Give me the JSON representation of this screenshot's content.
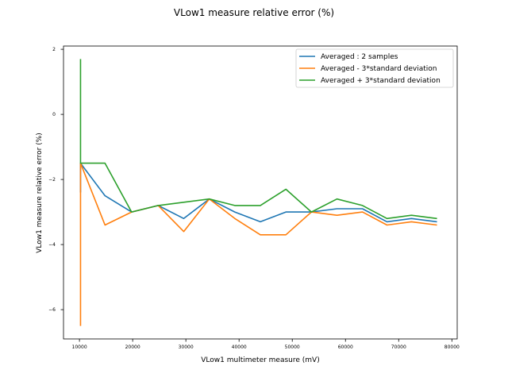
{
  "chart_data": {
    "type": "line",
    "title": "VLow1 measure relative error (%)",
    "xlabel": "VLow1 multimeter measure (mV)",
    "ylabel": "VLow1 measure relative error (%)",
    "xlim": [
      7000,
      81000
    ],
    "ylim": [
      -6.9,
      2.1
    ],
    "xticks": [
      10000,
      20000,
      30000,
      40000,
      50000,
      60000,
      70000,
      80000
    ],
    "yticks": [
      -6,
      -4,
      -2,
      0,
      2
    ],
    "grid": false,
    "legend_position": "top-right",
    "series": [
      {
        "name": "Averaged : 2 samples",
        "color": "#1f77b4",
        "x": [
          10200,
          10200,
          10200,
          14800,
          19800,
          24800,
          29600,
          34400,
          39200,
          44000,
          48800,
          53600,
          58400,
          63200,
          67800,
          72400,
          77200
        ],
        "y": [
          -2.4,
          -1.5,
          -1.5,
          -2.5,
          -3.0,
          -2.8,
          -3.2,
          -2.6,
          -3.0,
          -3.3,
          -3.0,
          -3.0,
          -2.9,
          -2.9,
          -3.3,
          -3.2,
          -3.3
        ]
      },
      {
        "name": "Averaged - 3*standard deviation",
        "color": "#ff7f0e",
        "x": [
          10200,
          10200,
          10200,
          14800,
          19800,
          24800,
          29600,
          34400,
          39200,
          44000,
          48800,
          53600,
          58400,
          63200,
          67800,
          72400,
          77200
        ],
        "y": [
          -6.5,
          -1.5,
          -1.5,
          -3.4,
          -3.0,
          -2.8,
          -3.6,
          -2.6,
          -3.2,
          -3.7,
          -3.7,
          -3.0,
          -3.1,
          -3.0,
          -3.4,
          -3.3,
          -3.4
        ]
      },
      {
        "name": "Averaged + 3*standard deviation",
        "color": "#2ca02c",
        "x": [
          10200,
          10200,
          10200,
          14800,
          19800,
          24800,
          29600,
          34400,
          39200,
          44000,
          48800,
          53600,
          58400,
          63200,
          67800,
          72400,
          77200
        ],
        "y": [
          1.7,
          -1.5,
          -1.5,
          -1.5,
          -3.0,
          -2.8,
          -2.7,
          -2.6,
          -2.8,
          -2.8,
          -2.3,
          -3.0,
          -2.6,
          -2.8,
          -3.2,
          -3.1,
          -3.2
        ]
      }
    ]
  }
}
